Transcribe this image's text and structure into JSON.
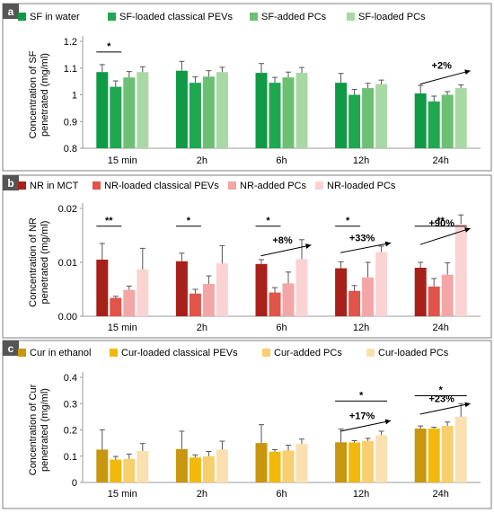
{
  "chart_data": [
    {
      "panel_label": "a",
      "type": "bar",
      "ylabel": [
        "Concentration of SF",
        "penetrated (mg/ml)"
      ],
      "ylim": [
        0.8,
        1.2
      ],
      "yticks": [
        0.8,
        0.9,
        1,
        1.1,
        1.2
      ],
      "ytick_labels": [
        "0.8",
        "0.9",
        "1",
        "1.1",
        "1.2"
      ],
      "categories": [
        "15 min",
        "2h",
        "6h",
        "12h",
        "24h"
      ],
      "legend_position": "top",
      "series": [
        {
          "name": "SF in water",
          "color": "#0f9a46",
          "values": [
            1.085,
            1.09,
            1.082,
            1.045,
            1.005
          ],
          "errors": [
            0.028,
            0.035,
            0.035,
            0.035,
            0.03
          ]
        },
        {
          "name": "SF-loaded classical PEVs",
          "color": "#1fa84f",
          "values": [
            1.03,
            1.045,
            1.045,
            1.0,
            0.975
          ],
          "errors": [
            0.022,
            0.022,
            0.02,
            0.02,
            0.02
          ]
        },
        {
          "name": "SF-added PCs",
          "color": "#6cc073",
          "values": [
            1.065,
            1.068,
            1.065,
            1.025,
            1.0
          ],
          "errors": [
            0.022,
            0.022,
            0.02,
            0.018,
            0.012
          ]
        },
        {
          "name": "SF-loaded PCs",
          "color": "#a8d9a4",
          "values": [
            1.085,
            1.085,
            1.082,
            1.04,
            1.025
          ],
          "errors": [
            0.02,
            0.018,
            0.02,
            0.015,
            0.012
          ]
        }
      ],
      "annotations": [
        {
          "type": "sig",
          "text": "*",
          "category": 0,
          "from_series": 0,
          "to_series": 1,
          "y": 1.16
        },
        {
          "type": "arrow",
          "text": "+2%",
          "category": 4,
          "y_from": 1.04,
          "y_to": 1.09
        }
      ]
    },
    {
      "panel_label": "b",
      "type": "bar",
      "ylabel": [
        "Concentration of NR",
        "penetrated (mg/ml)"
      ],
      "ylim": [
        0,
        0.02
      ],
      "yticks": [
        0,
        0.01,
        0.02
      ],
      "ytick_labels": [
        "0.00",
        "0.01",
        "0.02"
      ],
      "categories": [
        "15 min",
        "2h",
        "6h",
        "12h",
        "24h"
      ],
      "legend_position": "top",
      "series": [
        {
          "name": "NR in MCT",
          "color": "#a8201a",
          "values": [
            0.0105,
            0.0102,
            0.0097,
            0.0089,
            0.009
          ],
          "errors": [
            0.003,
            0.0015,
            0.0008,
            0.0012,
            0.001
          ]
        },
        {
          "name": "NR-loaded classical PEVs",
          "color": "#e0544a",
          "values": [
            0.0034,
            0.0042,
            0.0044,
            0.0047,
            0.0055
          ],
          "errors": [
            0.0003,
            0.0008,
            0.0009,
            0.001,
            0.0015
          ]
        },
        {
          "name": "NR-added PCs",
          "color": "#f4a6a6",
          "values": [
            0.0049,
            0.006,
            0.0061,
            0.0072,
            0.0077
          ],
          "errors": [
            0.0007,
            0.0015,
            0.0021,
            0.0028,
            0.0022
          ]
        },
        {
          "name": "NR-loaded PCs",
          "color": "#fbd3d3",
          "values": [
            0.0087,
            0.0098,
            0.0106,
            0.0119,
            0.0171
          ],
          "errors": [
            0.0039,
            0.0033,
            0.0036,
            0.0011,
            0.0017
          ]
        }
      ],
      "annotations": [
        {
          "type": "sig",
          "text": "**",
          "category": 0,
          "from_series": 0,
          "to_series": 1,
          "y": 0.0167
        },
        {
          "type": "sig",
          "text": "*",
          "category": 1,
          "from_series": 0,
          "to_series": 1,
          "y": 0.0167
        },
        {
          "type": "sig",
          "text": "*",
          "category": 2,
          "from_series": 0,
          "to_series": 1,
          "y": 0.0167
        },
        {
          "type": "sig",
          "text": "*",
          "category": 3,
          "from_series": 0,
          "to_series": 1,
          "y": 0.0167
        },
        {
          "type": "sig",
          "text": "**",
          "category": 4,
          "from_series": 0,
          "to_series": 3,
          "y": 0.0167
        },
        {
          "type": "arrow",
          "text": "+8%",
          "category": 2,
          "y_from": 0.0112,
          "y_to": 0.0132
        },
        {
          "type": "arrow",
          "text": "+33%",
          "category": 3,
          "y_from": 0.0118,
          "y_to": 0.0136
        },
        {
          "type": "arrow",
          "text": "+90%",
          "category": 4,
          "y_from": 0.0133,
          "y_to": 0.0163
        }
      ]
    },
    {
      "panel_label": "c",
      "type": "bar",
      "ylabel": [
        "Concentration of Cur",
        "penetrated (mg/ml)"
      ],
      "ylim": [
        0,
        0.4
      ],
      "yticks": [
        0,
        0.1,
        0.2,
        0.3,
        0.4
      ],
      "ytick_labels": [
        "0",
        "0.1",
        "0.2",
        "0.3",
        "0.4"
      ],
      "categories": [
        "15 min",
        "2h",
        "6h",
        "12h",
        "24h"
      ],
      "legend_position": "top",
      "series": [
        {
          "name": "Cur in ethanol",
          "color": "#c8970e",
          "values": [
            0.125,
            0.127,
            0.15,
            0.153,
            0.205
          ],
          "errors": [
            0.075,
            0.068,
            0.07,
            0.05,
            0.01
          ]
        },
        {
          "name": "Cur-loaded classical PEVs",
          "color": "#f2b90c",
          "values": [
            0.087,
            0.095,
            0.117,
            0.152,
            0.205
          ],
          "errors": [
            0.012,
            0.01,
            0.008,
            0.007,
            0.005
          ]
        },
        {
          "name": "Cur-added PCs",
          "color": "#f8cf6e",
          "values": [
            0.09,
            0.1,
            0.122,
            0.158,
            0.215
          ],
          "errors": [
            0.018,
            0.018,
            0.02,
            0.01,
            0.015
          ]
        },
        {
          "name": "Cur-loaded PCs",
          "color": "#fbe0b0",
          "values": [
            0.12,
            0.125,
            0.147,
            0.18,
            0.25
          ],
          "errors": [
            0.028,
            0.032,
            0.018,
            0.015,
            0.05
          ]
        }
      ],
      "annotations": [
        {
          "type": "sig",
          "text": "*",
          "category": 3,
          "from_series": 0,
          "to_series": 3,
          "y": 0.31
        },
        {
          "type": "sig",
          "text": "*",
          "category": 4,
          "from_series": 0,
          "to_series": 3,
          "y": 0.33
        },
        {
          "type": "arrow",
          "text": "+17%",
          "category": 3,
          "y_from": 0.195,
          "y_to": 0.235
        },
        {
          "type": "arrow",
          "text": "+23%",
          "category": 4,
          "y_from": 0.26,
          "y_to": 0.3
        }
      ]
    }
  ]
}
